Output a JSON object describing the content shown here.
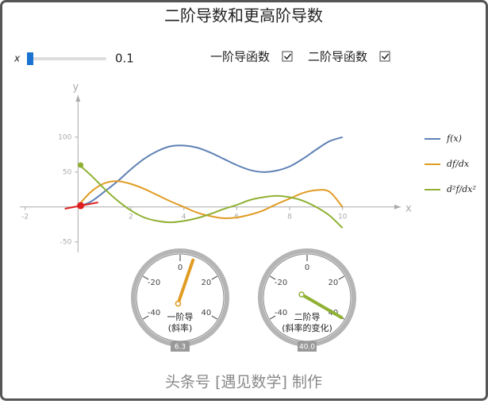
{
  "title": "二阶导数和更高阶导数",
  "controls": {
    "slider": {
      "label": "x",
      "value": 0.1
    },
    "checkboxes": [
      {
        "label": "一阶导函数",
        "checked": true
      },
      {
        "label": "二阶导函数",
        "checked": true
      }
    ]
  },
  "chart_data": {
    "type": "line",
    "x": [
      0,
      0.5,
      1,
      1.5,
      2,
      2.5,
      3,
      3.5,
      4,
      4.5,
      5,
      5.5,
      6,
      6.5,
      7,
      7.5,
      8,
      8.5,
      9,
      9.5,
      10
    ],
    "series": [
      {
        "name": "f(x)",
        "color": "#5e81b5",
        "values": [
          0,
          8,
          22,
          37,
          54,
          69,
          80,
          87,
          88,
          85,
          78,
          69,
          60,
          53,
          50,
          52,
          58,
          69,
          82,
          94,
          100
        ]
      },
      {
        "name": "df/dx",
        "color": "#e19c24",
        "values": [
          2,
          22,
          34,
          37,
          33,
          26,
          17,
          8,
          0,
          -8,
          -13,
          -16,
          -15,
          -11,
          -5,
          4,
          12,
          20,
          24,
          22,
          0
        ]
      },
      {
        "name": "d²f/dx²",
        "color": "#8fb032",
        "values": [
          62,
          45,
          26,
          9,
          -5,
          -15,
          -20,
          -22,
          -20,
          -16,
          -10,
          -3,
          3,
          10,
          14,
          16,
          14,
          9,
          0,
          -12,
          -30
        ]
      }
    ],
    "markers": [
      {
        "x": 0.1,
        "y": 2,
        "color": "#e02020"
      },
      {
        "x": 0.1,
        "y": 60,
        "color": "#8fb032"
      }
    ],
    "xlim": [
      -2.2,
      12.2
    ],
    "ylim": [
      -65,
      160
    ],
    "xticks": [
      -2,
      2,
      4,
      6,
      8,
      10
    ],
    "yticks": [
      -50,
      50,
      100
    ],
    "x_label": "x",
    "y_label": "y"
  },
  "gauges": [
    {
      "label": [
        "一阶导",
        "(斜率)"
      ],
      "value": 6.3,
      "value_label": "6.3",
      "color": "#e19c24",
      "lim": [
        -60,
        60
      ],
      "ticks": [
        -40,
        -20,
        0,
        20,
        40
      ]
    },
    {
      "label": [
        "二阶导",
        "(斜率的变化)"
      ],
      "value": 40,
      "value_label": "40.0",
      "color": "#8fb032",
      "lim": [
        -60,
        60
      ],
      "ticks": [
        -40,
        -20,
        0,
        20,
        40
      ]
    }
  ],
  "footer": "头条号 [遇见数学] 制作"
}
